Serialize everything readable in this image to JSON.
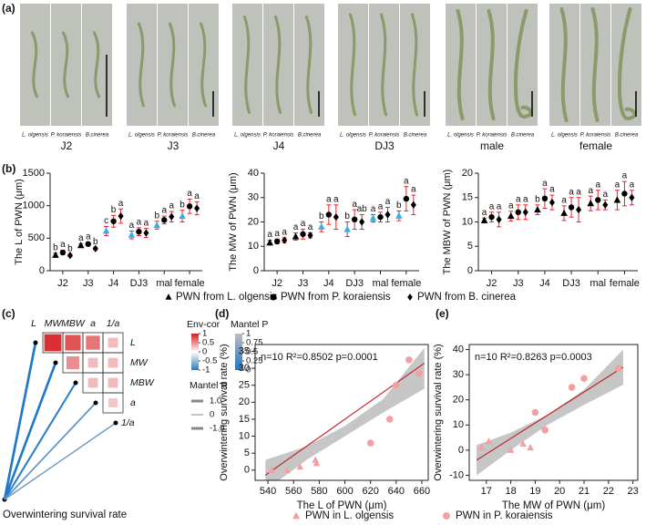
{
  "panel_labels": [
    "(a)",
    "(b)",
    "(c)",
    "(d)",
    "(e)"
  ],
  "panel_a": {
    "species_labels": [
      "L. olgensis",
      "P. koraiensis",
      "B.cinerea"
    ],
    "stages": [
      "J2",
      "J3",
      "J4",
      "DJ3",
      "male",
      "female"
    ]
  },
  "chart_data": [
    {
      "type": "errorpoint",
      "ylabel": "The L of  PWN (μm)",
      "categories": [
        "J2",
        "J3",
        "J4",
        "DJ3",
        "mal",
        "female"
      ],
      "ylim": [
        0,
        1500
      ],
      "yticks": [
        0,
        500,
        1000,
        1500
      ],
      "error_color": "#e8242c",
      "series": [
        {
          "name": "PWN from L. olgensis",
          "marker": "triangle",
          "color": "#000000",
          "point_colors": [
            "#000000",
            "#000000",
            "#3ab0e2",
            "#3ab0e2",
            "#3ab0e2",
            "#3ab0e2"
          ],
          "values": [
            240,
            390,
            610,
            550,
            700,
            840
          ],
          "errors": [
            30,
            25,
            70,
            60,
            60,
            90
          ],
          "letters": [
            "b",
            "a",
            "c",
            "a",
            "b",
            "b"
          ]
        },
        {
          "name": "PWN from P. koraiensis",
          "marker": "circle",
          "color": "#000000",
          "values": [
            280,
            410,
            760,
            600,
            780,
            990
          ],
          "errors": [
            35,
            30,
            90,
            60,
            60,
            110
          ],
          "letters": [
            "a",
            "a",
            "b",
            "a",
            "a",
            "a"
          ]
        },
        {
          "name": "PWN from B. cinerea",
          "marker": "diamond",
          "color": "#000000",
          "values": [
            235,
            340,
            840,
            580,
            830,
            960
          ],
          "errors": [
            20,
            20,
            110,
            70,
            80,
            100
          ],
          "letters": [
            "b",
            "b",
            "a",
            "a",
            "a",
            "a"
          ]
        }
      ]
    },
    {
      "type": "errorpoint",
      "ylabel": "The MW of PWN (μm)",
      "categories": [
        "J2",
        "J3",
        "J4",
        "DJ3",
        "mal",
        "female"
      ],
      "ylim": [
        0,
        40
      ],
      "yticks": [
        0,
        10,
        20,
        30,
        40
      ],
      "error_color": "#e8242c",
      "series": [
        {
          "marker": "triangle",
          "color": "#000000",
          "point_colors": [
            "#000000",
            "#000000",
            "#3ab0e2",
            "#3ab0e2",
            "#3ab0e2",
            "#3ab0e2"
          ],
          "values": [
            11.5,
            14,
            18,
            17,
            21.5,
            22.5
          ],
          "errors": [
            1,
            1.5,
            2,
            3,
            1.5,
            2
          ],
          "letters": [
            "a",
            "a",
            "b",
            "b",
            "a",
            "b"
          ]
        },
        {
          "marker": "circle",
          "color": "#000000",
          "values": [
            12,
            15,
            23,
            21,
            22,
            29.5
          ],
          "errors": [
            1,
            2,
            4,
            4,
            2,
            5
          ],
          "letters": [
            "a",
            "a",
            "a",
            "a",
            "a",
            "a"
          ]
        },
        {
          "marker": "diamond",
          "color": "#000000",
          "values": [
            12.5,
            14.5,
            22,
            20,
            23,
            27
          ],
          "errors": [
            1,
            1,
            5,
            3,
            3,
            4
          ],
          "letters": [
            "a",
            "a",
            "a",
            "ab",
            "a",
            "a"
          ]
        }
      ]
    },
    {
      "type": "errorpoint",
      "ylabel": "The MBW of PWN (μm)",
      "categories": [
        "J2",
        "J3",
        "J4",
        "DJ3",
        "mal",
        "female"
      ],
      "ylim": [
        0,
        20
      ],
      "yticks": [
        0,
        5,
        10,
        15,
        20
      ],
      "error_color": "#e8242c",
      "series": [
        {
          "marker": "triangle",
          "color": "#000000",
          "values": [
            10.3,
            11.2,
            12.5,
            11.8,
            13.8,
            14.5
          ],
          "errors": [
            0.5,
            1,
            1,
            1.5,
            1.5,
            2
          ],
          "letters": [
            "a",
            "a",
            "b",
            "a",
            "a",
            "a"
          ]
        },
        {
          "marker": "circle",
          "color": "#000000",
          "values": [
            11,
            12,
            14.8,
            13,
            14.5,
            15.8
          ],
          "errors": [
            1,
            1.5,
            2,
            2,
            2,
            2.5
          ],
          "letters": [
            "a",
            "a",
            "a",
            "a",
            "a",
            "a"
          ]
        },
        {
          "marker": "diamond",
          "color": "#000000",
          "values": [
            10.5,
            12,
            14,
            12.5,
            13.5,
            15
          ],
          "errors": [
            1.5,
            1.5,
            1.5,
            2.5,
            1,
            1.5
          ],
          "letters": [
            "a",
            "a",
            "a",
            "a",
            "a",
            "a"
          ]
        }
      ]
    },
    {
      "type": "mantel",
      "variables": [
        "L",
        "MW",
        "MBW",
        "a",
        "1/a"
      ],
      "corr": [
        [
          null,
          0.9,
          0.75,
          0.6,
          0.3
        ],
        [
          null,
          null,
          0.5,
          0.3,
          0.3
        ],
        [
          null,
          null,
          null,
          0.3,
          0.3
        ],
        [
          null,
          null,
          null,
          null,
          0.25
        ],
        [
          null,
          null,
          null,
          null,
          null
        ]
      ],
      "mantel_target": "Overwintering survival rate",
      "mantel_r": [
        0.85,
        0.8,
        0.55,
        0.35,
        0.2
      ],
      "mantel_p": [
        0.001,
        0.001,
        0.1,
        0.4,
        0.5
      ],
      "corr_legend": {
        "title": "Env-cor",
        "lim": [
          -1,
          1
        ],
        "ticks": [
          1,
          0.5,
          0,
          -0.5,
          -1
        ]
      },
      "p_legend": {
        "title": "Mantel P",
        "lim": [
          0,
          1
        ],
        "ticks": [
          1,
          0.75,
          0.5,
          0.25,
          0
        ]
      },
      "r_legend": {
        "title": "Mantel R",
        "ticks": [
          {
            "value": 1,
            "label": "1.0"
          },
          0,
          {
            "value": -1,
            "label": "-1.0"
          }
        ]
      }
    },
    {
      "type": "scatter",
      "annotation": "n=10 R²=0.8502 p=0.0001",
      "xlabel": "The L of  PWN (μm)",
      "ylabel": "Overwintering survival rate (%)",
      "xlim": [
        530,
        665
      ],
      "xticks": [
        540,
        560,
        580,
        600,
        620,
        640,
        660
      ],
      "ylim": [
        -3,
        37
      ],
      "yticks": [
        0,
        5,
        10,
        15,
        20,
        25,
        30,
        35
      ],
      "frame": true,
      "series": [
        {
          "name": "PWN in L. olgensis",
          "marker": "triangle",
          "color": "#f2a0a0",
          "x": [
            543,
            555,
            565,
            577,
            578
          ],
          "values": [
            0,
            0,
            1,
            3,
            2
          ]
        },
        {
          "name": "PWN in P. koraiensis",
          "marker": "circle",
          "color": "#f2a0a0",
          "x": [
            620,
            635,
            640,
            650,
            658
          ],
          "values": [
            8,
            15,
            25,
            32.5,
            28.5
          ]
        }
      ],
      "fit": {
        "color": "#c1272d",
        "x": [
          538,
          662
        ],
        "values": [
          -1.5,
          31.5
        ]
      },
      "ci": {
        "color": "#b3b3b3",
        "x": [
          538,
          570,
          600,
          630,
          662
        ],
        "lower": [
          -6,
          3,
          10,
          17,
          24
        ],
        "upper": [
          3,
          7,
          13,
          21,
          36
        ]
      }
    },
    {
      "type": "scatter",
      "annotation": "n=10 R²=0.8263 p=0.0003",
      "xlabel": "The MW of  PWN (μm)",
      "ylabel": "Overwintering survival rate (%)",
      "xlim": [
        16.3,
        23.2
      ],
      "xticks": [
        17,
        18,
        19,
        20,
        21,
        22,
        23
      ],
      "ylim": [
        -12,
        42
      ],
      "yticks": [
        -10,
        0,
        10,
        20,
        30,
        40
      ],
      "frame": true,
      "series": [
        {
          "marker": "triangle",
          "color": "#f2a0a0",
          "x": [
            16.8,
            17.1,
            18.0,
            18.5,
            18.8
          ],
          "values": [
            1,
            3.5,
            0,
            2.5,
            1
          ]
        },
        {
          "marker": "circle",
          "color": "#f2a0a0",
          "x": [
            19,
            19.4,
            20.5,
            21,
            22.4
          ],
          "values": [
            15,
            8,
            25,
            28.5,
            32.5
          ]
        }
      ],
      "fit": {
        "color": "#c1272d",
        "x": [
          16.6,
          22.6
        ],
        "values": [
          -4,
          33
        ]
      },
      "ci": {
        "color": "#b3b3b3",
        "x": [
          16.6,
          18,
          19.5,
          21,
          22.6
        ],
        "lower": [
          -10,
          0,
          10,
          18,
          26
        ],
        "upper": [
          2,
          7,
          14,
          24,
          40
        ]
      }
    }
  ]
}
